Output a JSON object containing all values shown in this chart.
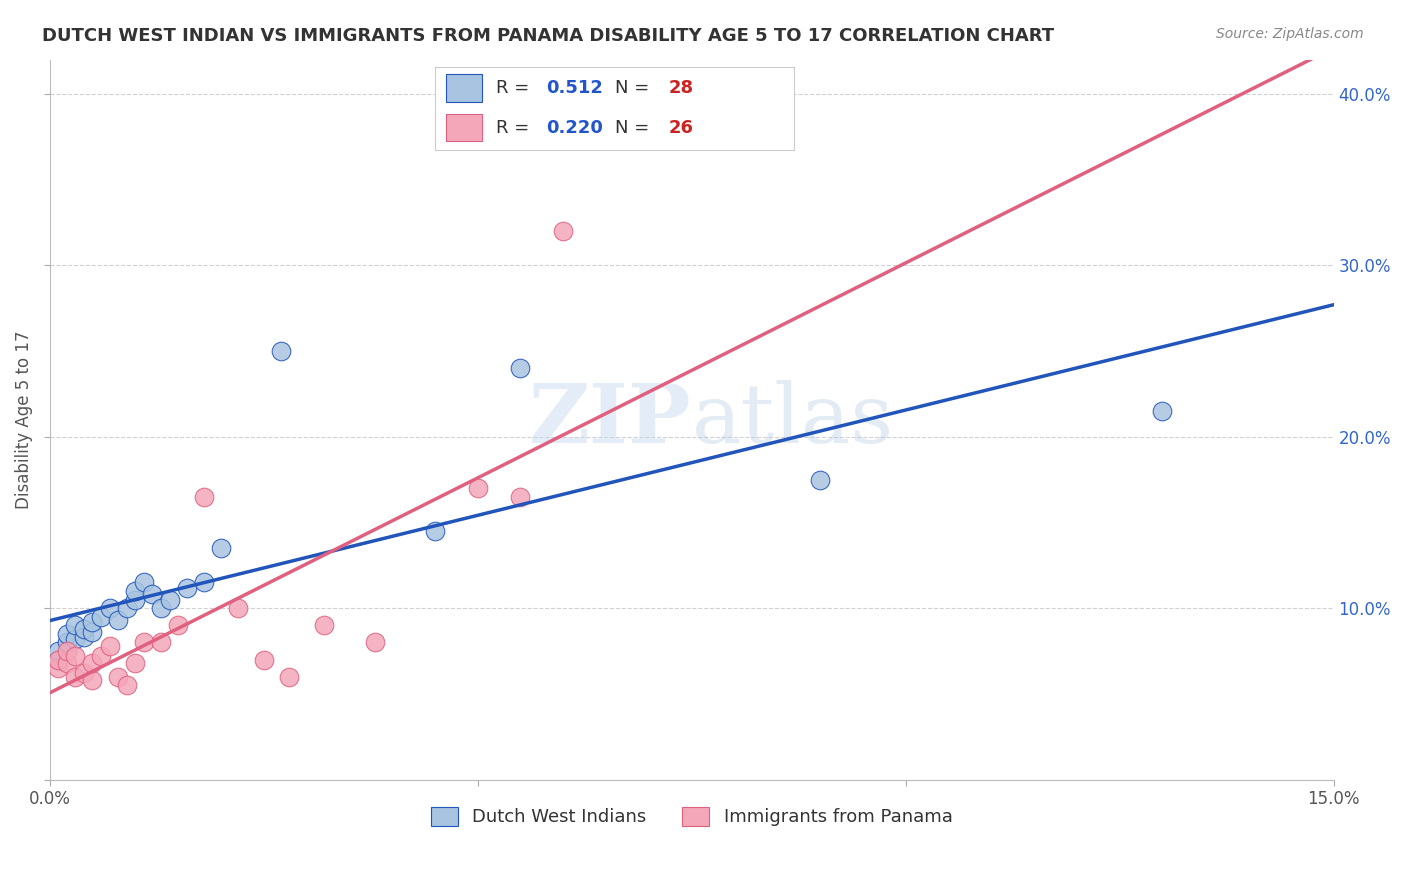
{
  "title": "DUTCH WEST INDIAN VS IMMIGRANTS FROM PANAMA DISABILITY AGE 5 TO 17 CORRELATION CHART",
  "source": "Source: ZipAtlas.com",
  "ylabel": "Disability Age 5 to 17",
  "xlim": [
    0.0,
    0.15
  ],
  "ylim": [
    0.0,
    0.42
  ],
  "xtick_positions": [
    0.0,
    0.05,
    0.1,
    0.15
  ],
  "xtick_labels": [
    "0.0%",
    "",
    "",
    "15.0%"
  ],
  "ytick_positions": [
    0.0,
    0.1,
    0.2,
    0.3,
    0.4
  ],
  "ytick_labels": [
    "",
    "10.0%",
    "20.0%",
    "30.0%",
    "40.0%"
  ],
  "blue_R": "0.512",
  "blue_N": "28",
  "pink_R": "0.220",
  "pink_N": "26",
  "blue_color": "#a8c4e0",
  "pink_color": "#f4a7b9",
  "blue_line_color": "#2255bb",
  "pink_line_color": "#e06080",
  "watermark_zip": "ZIP",
  "watermark_atlas": "atlas",
  "legend_label_blue": "Dutch West Indians",
  "legend_label_pink": "Immigrants from Panama",
  "blue_points_x": [
    0.001,
    0.001,
    0.002,
    0.002,
    0.003,
    0.003,
    0.004,
    0.004,
    0.005,
    0.005,
    0.006,
    0.007,
    0.008,
    0.009,
    0.01,
    0.01,
    0.011,
    0.012,
    0.013,
    0.014,
    0.016,
    0.018,
    0.02,
    0.027,
    0.045,
    0.055,
    0.09,
    0.13
  ],
  "blue_points_y": [
    0.07,
    0.075,
    0.08,
    0.085,
    0.082,
    0.09,
    0.083,
    0.088,
    0.086,
    0.092,
    0.095,
    0.1,
    0.093,
    0.1,
    0.105,
    0.11,
    0.115,
    0.108,
    0.1,
    0.105,
    0.112,
    0.115,
    0.135,
    0.25,
    0.145,
    0.24,
    0.175,
    0.215
  ],
  "pink_points_x": [
    0.001,
    0.001,
    0.002,
    0.002,
    0.003,
    0.003,
    0.004,
    0.005,
    0.005,
    0.006,
    0.007,
    0.008,
    0.009,
    0.01,
    0.011,
    0.013,
    0.015,
    0.018,
    0.022,
    0.025,
    0.028,
    0.032,
    0.038,
    0.05,
    0.055,
    0.06
  ],
  "pink_points_y": [
    0.065,
    0.07,
    0.068,
    0.075,
    0.072,
    0.06,
    0.062,
    0.058,
    0.068,
    0.072,
    0.078,
    0.06,
    0.055,
    0.068,
    0.08,
    0.08,
    0.09,
    0.165,
    0.1,
    0.07,
    0.06,
    0.09,
    0.08,
    0.17,
    0.165,
    0.32
  ],
  "grid_color": "#cccccc",
  "background_color": "#ffffff",
  "title_fontsize": 13,
  "axis_label_fontsize": 12,
  "tick_fontsize": 12,
  "legend_fontsize": 13
}
